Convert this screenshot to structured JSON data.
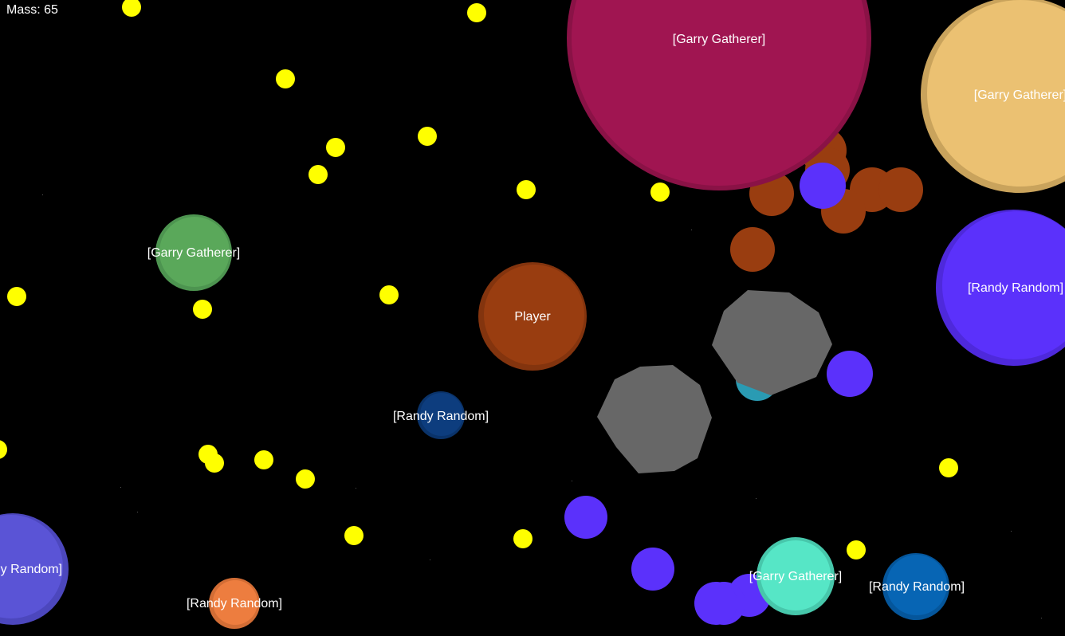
{
  "hud": {
    "mass_label": "Mass: 65"
  },
  "colors": {
    "background": "#000000",
    "food": "#ffff00",
    "virus": "#676767",
    "label": "#ffffff"
  },
  "cells": [
    {
      "id": "garry-gatherer-magenta",
      "name": "[Garry Gatherer]",
      "color": "#a01551",
      "border": "#8a1246"
    },
    {
      "id": "garry-gatherer-tan",
      "name": "[Garry Gatherer]",
      "color": "#ebc172",
      "border": "#c9a35c"
    },
    {
      "id": "garry-gatherer-green",
      "name": "[Garry Gatherer]",
      "color": "#5aa85a",
      "border": "#4d9450"
    },
    {
      "id": "player",
      "name": "Player",
      "color": "#993d10",
      "border": "#83340e"
    },
    {
      "id": "randy-random-navy",
      "name": "[Randy Random]",
      "color": "#0d3d7e",
      "border": "#0a336a"
    },
    {
      "id": "randy-random-violet-right",
      "name": "[Randy Random]",
      "color": "#5b31fb",
      "border": "#4e29db"
    },
    {
      "id": "randy-random-slate",
      "name": "[Randy Random]",
      "color": "#5a54d6",
      "border": "#4c47bd"
    },
    {
      "id": "randy-random-orange",
      "name": "[Randy Random]",
      "color": "#ed7d3f",
      "border": "#d26d35"
    },
    {
      "id": "garry-gatherer-aqua",
      "name": "[Garry Gatherer]",
      "color": "#56e6c6",
      "border": "#47c7ab"
    },
    {
      "id": "randy-random-blue",
      "name": "[Randy Random]",
      "color": "#0765b4",
      "border": "#05569b"
    }
  ]
}
